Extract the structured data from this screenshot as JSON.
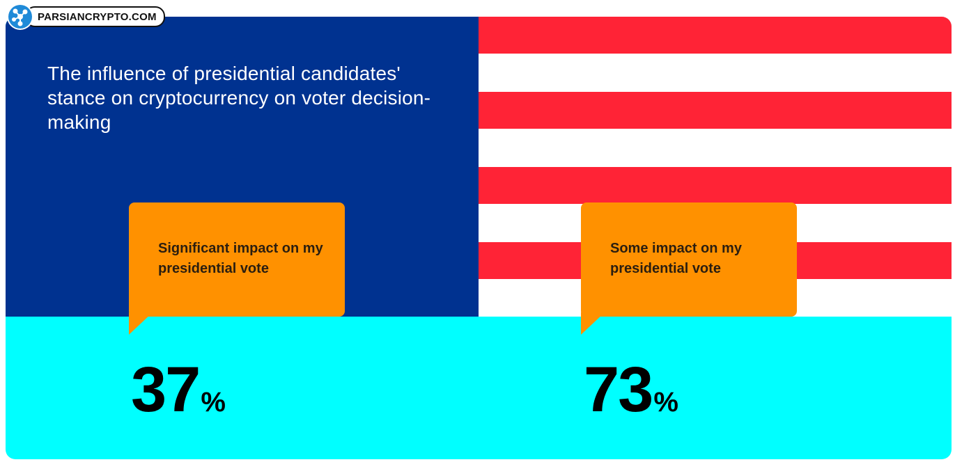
{
  "brand": {
    "name": "PARSIANCRYPTO.COM",
    "icon": "network-nodes-icon"
  },
  "title": "The influence of presidential candidates' stance on cryptocurrency on voter decision-making",
  "stats": [
    {
      "label": "Significant impact on my presidential vote",
      "value": "37",
      "unit": "%"
    },
    {
      "label": "Some impact on my presidential vote",
      "value": "73",
      "unit": "%"
    }
  ],
  "colors": {
    "navy": "#003290",
    "flag_red": "#ff2336",
    "flag_white": "#ffffff",
    "bottom_cyan": "#00ffff",
    "bubble_orange": "#ff9100",
    "logo_blue": "#1f8ad8"
  }
}
